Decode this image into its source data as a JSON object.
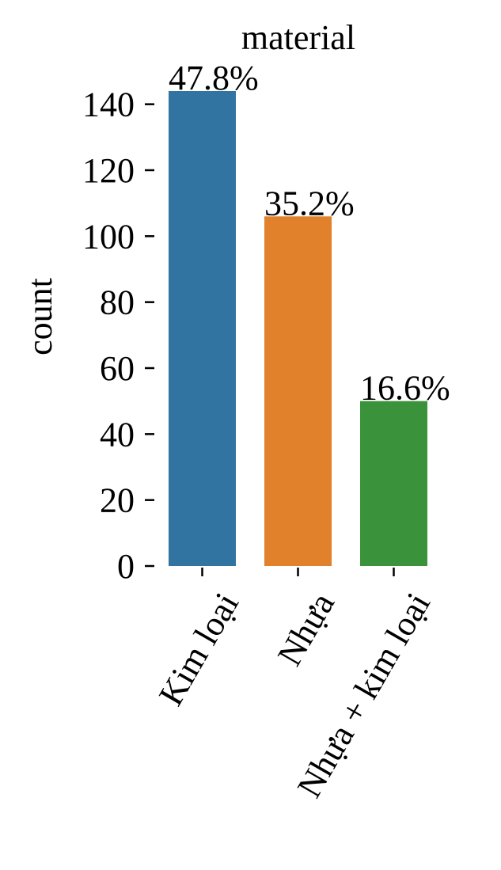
{
  "chart_data": {
    "type": "bar",
    "title": "material",
    "xlabel": "",
    "ylabel": "count",
    "categories": [
      "Kim loại",
      "Nhựa",
      "Nhựa + kim loại"
    ],
    "values": [
      144,
      106,
      50
    ],
    "bar_labels": [
      "47.8%",
      "35.2%",
      "16.6%"
    ],
    "colors": [
      "#3274a1",
      "#e1812c",
      "#3a923a"
    ],
    "yticks": [
      0,
      20,
      40,
      60,
      80,
      100,
      120,
      140
    ],
    "ylim": [
      0,
      144
    ],
    "grid": false,
    "legend": "none"
  }
}
